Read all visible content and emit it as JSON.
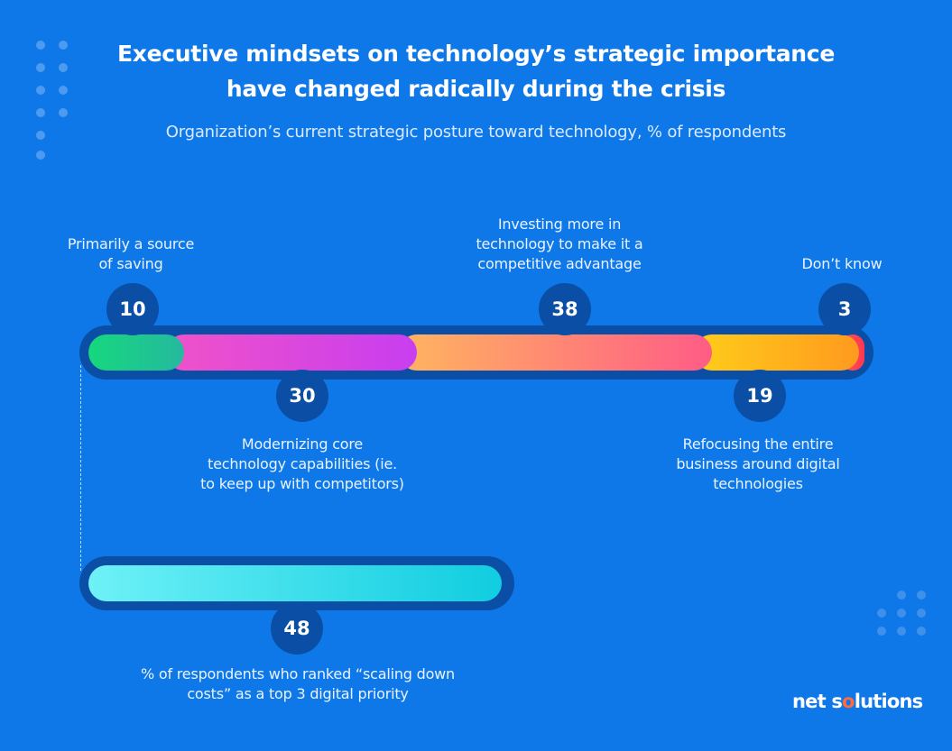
{
  "title_line1": "Executive mindsets on technology’s strategic importance",
  "title_line2": "have changed radically during the crisis",
  "subtitle": "Organization’s current strategic posture toward technology, % of respondents",
  "chart_data": [
    {
      "type": "bar",
      "stacked": true,
      "orientation": "horizontal",
      "categories": [
        "Primarily a source of saving",
        "Modernizing core technology capabilities (ie. to keep up with competitors)",
        "Investing more in technology to make it a competitive advantage",
        "Refocusing the entire business around digital technologies",
        "Don’t know"
      ],
      "values": [
        10,
        30,
        38,
        19,
        3
      ],
      "value_labels": [
        "10",
        "30",
        "38",
        "19",
        "3"
      ],
      "colors": [
        "#20c997",
        "#d63ce0",
        "#ff5f7e",
        "#ffb21e",
        "#ff3b50"
      ],
      "xlim": [
        0,
        100
      ]
    },
    {
      "type": "bar",
      "orientation": "horizontal",
      "categories": [
        "% of respondents who ranked “scaling down costs” as a top 3 digital priority"
      ],
      "values": [
        48
      ],
      "value_labels": [
        "48"
      ],
      "colors": [
        "#3ad6ea"
      ],
      "xlim": [
        0,
        100
      ]
    }
  ],
  "labels": {
    "saving": [
      "Primarily a source",
      "of saving"
    ],
    "modernizing": [
      "Modernizing core",
      "technology capabilities (ie.",
      "to keep up with competitors)"
    ],
    "investing": [
      "Investing more in",
      "technology to make it a",
      "competitive advantage"
    ],
    "refocusing": [
      "Refocusing the entire",
      "business around digital",
      "technologies"
    ],
    "dont_know": [
      "Don’t know"
    ],
    "scaling": [
      "% of respondents who ranked “scaling down",
      "costs” as a top 3 digital priority"
    ]
  },
  "logo": {
    "part1": "net s",
    "part2": "o",
    "part3": "lutions"
  }
}
